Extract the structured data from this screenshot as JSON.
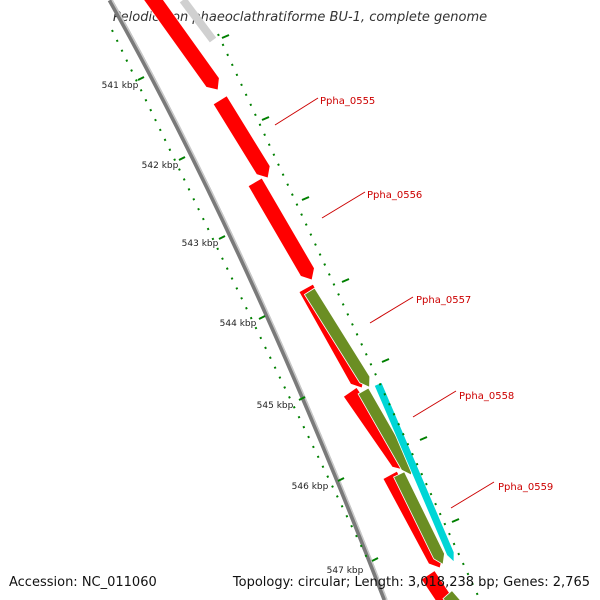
{
  "title": "Pelodictyon phaeoclathratiforme BU-1, complete genome",
  "accession_text": "Accession: NC_011060",
  "summary_text": "Topology: circular; Length: 3,018,238 bp; Genes: 2,765",
  "kbp_ticks": [
    {
      "label": "541 kbp"
    },
    {
      "label": "542 kbp"
    },
    {
      "label": "543 kbp"
    },
    {
      "label": "544 kbp"
    },
    {
      "label": "545 kbp"
    },
    {
      "label": "546 kbp"
    },
    {
      "label": "547 kbp"
    }
  ],
  "genes": [
    {
      "label": "Ppha_0555",
      "color": "#ff0000"
    },
    {
      "label": "Ppha_0556",
      "color": "#ff0000"
    },
    {
      "label": "Ppha_0557",
      "color": "#ff0000"
    },
    {
      "label": "Ppha_0558",
      "color": "#ff0000"
    },
    {
      "label": "Ppha_0559",
      "color": "#ff0000"
    }
  ],
  "colors": {
    "gene_forward": "#ff0000",
    "gene_olive": "#6b8e23",
    "gene_cyan": "#00d6d6",
    "backbone": "#808080",
    "tick": "#008000",
    "label": "#cc0000"
  }
}
